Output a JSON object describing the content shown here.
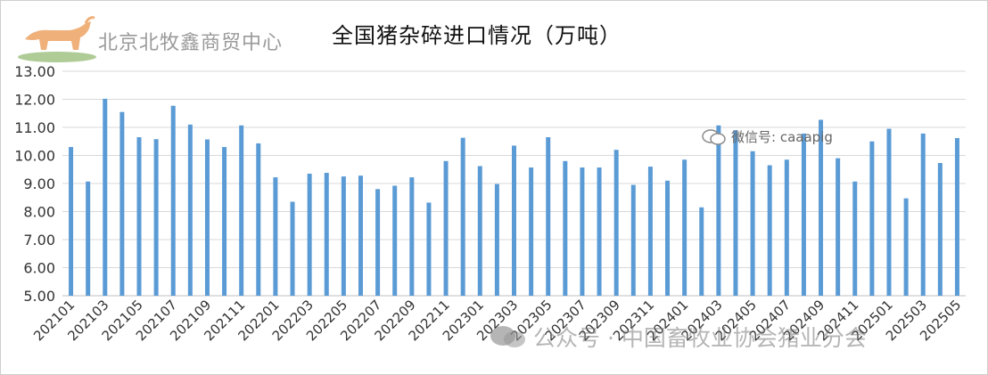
{
  "header": {
    "logo_text": "北京北牧鑫商贸中心",
    "title": "全国猪杂碎进口情况（万吨）"
  },
  "watermarks": {
    "wechat_label": "微信号: caaapig",
    "account_label": "公众号 · 中国畜牧业协会猪业分会"
  },
  "colors": {
    "bar": "#5b9bd5",
    "grid": "#d9d9d9",
    "axis": "#bfbfbf"
  },
  "chart_data": {
    "type": "bar",
    "title": "全国猪杂碎进口情况（万吨）",
    "xlabel": "",
    "ylabel": "",
    "ylim": [
      5.0,
      13.0
    ],
    "yticks": [
      "5.00",
      "6.00",
      "7.00",
      "8.00",
      "9.00",
      "10.00",
      "11.00",
      "12.00",
      "13.00"
    ],
    "grid": true,
    "categories": [
      "202101",
      "202102",
      "202103",
      "202104",
      "202105",
      "202106",
      "202107",
      "202108",
      "202109",
      "202110",
      "202111",
      "202112",
      "202201",
      "202202",
      "202203",
      "202204",
      "202205",
      "202206",
      "202207",
      "202208",
      "202209",
      "202210",
      "202211",
      "202212",
      "202301",
      "202302",
      "202303",
      "202304",
      "202305",
      "202306",
      "202307",
      "202308",
      "202309",
      "202310",
      "202311",
      "202312",
      "202401",
      "202402",
      "202403",
      "202404",
      "202405",
      "202406",
      "202407",
      "202408",
      "202409",
      "202410",
      "202411",
      "202412",
      "202501",
      "202502",
      "202503",
      "202504",
      "202505"
    ],
    "tick_labels": [
      "202101",
      "202103",
      "202105",
      "202107",
      "202109",
      "202111",
      "202201",
      "202203",
      "202205",
      "202207",
      "202209",
      "202211",
      "202301",
      "202303",
      "202305",
      "202307",
      "202309",
      "202311",
      "202401",
      "202403",
      "202405",
      "202407",
      "202409",
      "202411",
      "202501",
      "202503",
      "202505"
    ],
    "values": [
      10.3,
      9.07,
      12.02,
      11.55,
      10.65,
      10.58,
      11.77,
      11.1,
      10.57,
      10.3,
      11.07,
      10.43,
      9.22,
      8.35,
      9.35,
      9.38,
      9.25,
      9.28,
      8.8,
      8.92,
      9.22,
      8.32,
      9.8,
      10.63,
      9.62,
      8.98,
      10.35,
      9.57,
      10.65,
      9.8,
      9.57,
      9.57,
      10.2,
      8.95,
      9.6,
      9.1,
      9.85,
      8.15,
      11.07,
      10.9,
      10.15,
      9.65,
      9.85,
      10.78,
      11.27,
      9.9,
      9.07,
      10.5,
      10.95,
      8.47,
      10.78,
      9.73,
      10.62
    ]
  }
}
